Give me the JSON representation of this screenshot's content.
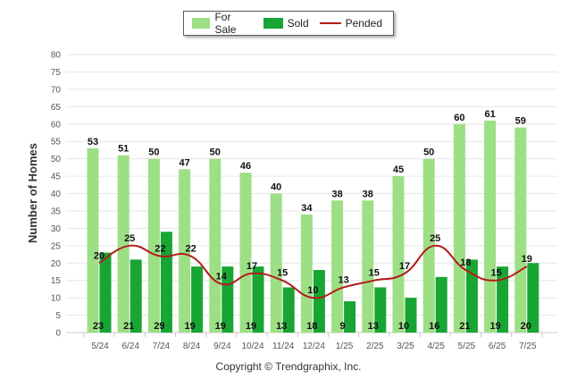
{
  "legend": {
    "for_sale": "For Sale",
    "sold": "Sold",
    "pended": "Pended"
  },
  "copyright": "Copyright © Trendgraphix, Inc.",
  "colors": {
    "for_sale": "#9ddf85",
    "sold": "#18a533",
    "pended": "#b31b1b",
    "grid": "#e6e6e6"
  },
  "chart_data": {
    "type": "bar",
    "ylabel": "Number of Homes",
    "xlabel": "",
    "ylim": [
      0,
      80
    ],
    "yticks": [
      0,
      5,
      10,
      15,
      20,
      25,
      30,
      35,
      40,
      45,
      50,
      55,
      60,
      65,
      70,
      75,
      80
    ],
    "grid": true,
    "legend_position": "top-center",
    "categories": [
      "5/24",
      "6/24",
      "7/24",
      "8/24",
      "9/24",
      "10/24",
      "11/24",
      "12/24",
      "1/25",
      "2/25",
      "3/25",
      "4/25",
      "5/25",
      "6/25",
      "7/25"
    ],
    "series": [
      {
        "name": "For Sale",
        "type": "bar",
        "values": [
          53,
          51,
          50,
          47,
          50,
          46,
          40,
          34,
          38,
          38,
          45,
          50,
          60,
          61,
          59
        ]
      },
      {
        "name": "Sold",
        "type": "bar",
        "values": [
          23,
          21,
          29,
          19,
          19,
          19,
          13,
          18,
          9,
          13,
          10,
          16,
          21,
          19,
          20
        ]
      },
      {
        "name": "Pended",
        "type": "line",
        "values": [
          20,
          25,
          22,
          22,
          14,
          17,
          15,
          10,
          13,
          15,
          17,
          25,
          18,
          15,
          19
        ]
      }
    ]
  }
}
